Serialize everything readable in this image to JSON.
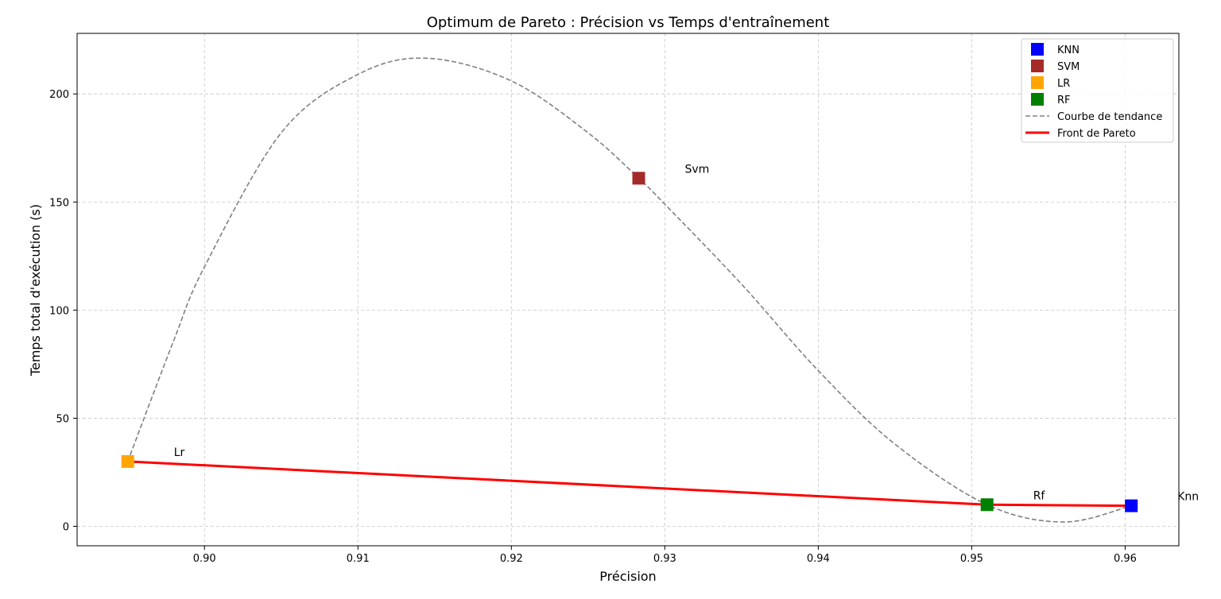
{
  "chart_data": {
    "type": "scatter",
    "title": "Optimum de Pareto : Précision vs Temps d'entraînement",
    "xlabel": "Précision",
    "ylabel": "Temps total d'exécution (s)",
    "xlim": [
      0.8917,
      0.9635
    ],
    "ylim": [
      -9,
      228
    ],
    "xticks": [
      0.9,
      0.91,
      0.92,
      0.93,
      0.94,
      0.95,
      0.96
    ],
    "xtick_labels": [
      "0.90",
      "0.91",
      "0.92",
      "0.93",
      "0.94",
      "0.95",
      "0.96"
    ],
    "yticks": [
      0,
      50,
      100,
      150,
      200
    ],
    "ytick_labels": [
      "0",
      "50",
      "100",
      "150",
      "200"
    ],
    "grid": true,
    "legend_position": "top-right",
    "series": [
      {
        "name": "KNN",
        "color": "#0000ff",
        "marker": "square",
        "points": [
          {
            "x": 0.9604,
            "y": 9.5
          }
        ],
        "annotation": "Knn"
      },
      {
        "name": "SVM",
        "color": "#a52a2a",
        "marker": "square",
        "points": [
          {
            "x": 0.9283,
            "y": 161
          }
        ],
        "annotation": "Svm"
      },
      {
        "name": "LR",
        "color": "#ffa500",
        "marker": "square",
        "points": [
          {
            "x": 0.895,
            "y": 30
          }
        ],
        "annotation": "Lr"
      },
      {
        "name": "RF",
        "color": "#008000",
        "marker": "square",
        "points": [
          {
            "x": 0.951,
            "y": 10
          }
        ],
        "annotation": "Rf"
      }
    ],
    "trend_curve": {
      "name": "Courbe de tendance",
      "color": "#808080",
      "style": "dashed",
      "points": [
        {
          "x": 0.895,
          "y": 30
        },
        {
          "x": 0.898,
          "y": 86
        },
        {
          "x": 0.9,
          "y": 120
        },
        {
          "x": 0.905,
          "y": 182
        },
        {
          "x": 0.91,
          "y": 209
        },
        {
          "x": 0.9145,
          "y": 216.5
        },
        {
          "x": 0.92,
          "y": 206
        },
        {
          "x": 0.925,
          "y": 182
        },
        {
          "x": 0.9283,
          "y": 161
        },
        {
          "x": 0.93,
          "y": 149
        },
        {
          "x": 0.935,
          "y": 112
        },
        {
          "x": 0.94,
          "y": 72
        },
        {
          "x": 0.945,
          "y": 38
        },
        {
          "x": 0.951,
          "y": 10
        },
        {
          "x": 0.956,
          "y": 2
        },
        {
          "x": 0.9604,
          "y": 9.5
        }
      ]
    },
    "pareto_front": {
      "name": "Front de Pareto",
      "color": "#ff0000",
      "style": "solid",
      "points": [
        {
          "x": 0.895,
          "y": 30
        },
        {
          "x": 0.951,
          "y": 10
        },
        {
          "x": 0.9604,
          "y": 9.5
        }
      ]
    }
  }
}
